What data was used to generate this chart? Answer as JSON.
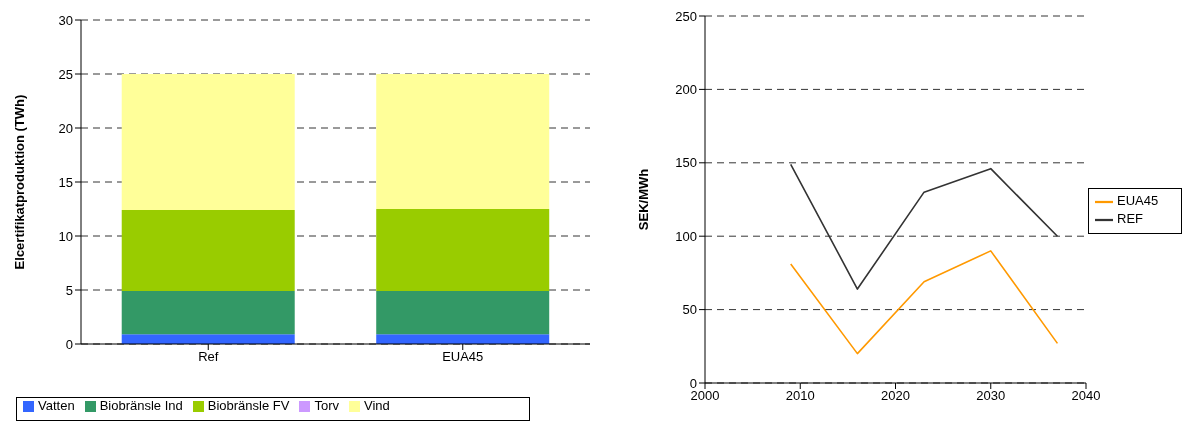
{
  "chart_data": [
    {
      "type": "bar",
      "stacked": true,
      "categories": [
        "Ref",
        "EUA45"
      ],
      "ylabel": "Elcertifikatproduktion (TWh)",
      "ylim": [
        0,
        30
      ],
      "yticks": [
        0,
        5,
        10,
        15,
        20,
        25,
        30
      ],
      "grid": "y",
      "legend": "bottom",
      "series": [
        {
          "name": "Vatten",
          "color": "#3366ff",
          "values": [
            0.9,
            0.9
          ]
        },
        {
          "name": "Biobränsle Ind",
          "color": "#339966",
          "values": [
            4.0,
            4.0
          ]
        },
        {
          "name": "Biobränsle FV",
          "color": "#99cc00",
          "values": [
            7.5,
            7.6
          ]
        },
        {
          "name": "Torv",
          "color": "#cc99ff",
          "values": [
            0,
            0
          ]
        },
        {
          "name": "Vind",
          "color": "#ffff99",
          "values": [
            12.6,
            12.5
          ]
        }
      ]
    },
    {
      "type": "line",
      "x": [
        2009,
        2016,
        2023,
        2030,
        2037
      ],
      "xlim": [
        2000,
        2040
      ],
      "xticks": [
        2000,
        2010,
        2020,
        2030,
        2040
      ],
      "ylabel": "SEK/MWh",
      "ylim": [
        0,
        250
      ],
      "yticks": [
        0,
        50,
        100,
        150,
        200,
        250
      ],
      "grid": "y",
      "legend": "right",
      "marker": "none",
      "series": [
        {
          "name": "EUA45",
          "color": "#ff9900",
          "values": [
            81,
            20,
            69,
            90,
            27
          ]
        },
        {
          "name": "REF",
          "color": "#333333",
          "values": [
            149,
            64,
            130,
            146,
            100
          ]
        }
      ]
    }
  ]
}
